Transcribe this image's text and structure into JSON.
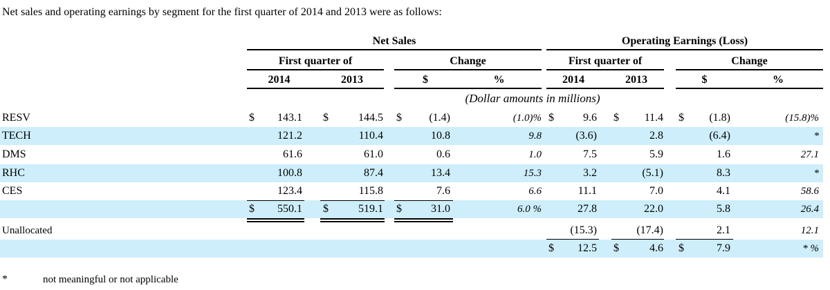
{
  "intro": "Net sales and operating earnings by segment for the first quarter of  2014 and 2013 were as follows:",
  "header": {
    "groups": [
      {
        "title": "Net Sales"
      },
      {
        "title": "Operating Earnings (Loss)"
      }
    ],
    "subgroups": [
      {
        "title": "First quarter of"
      },
      {
        "title": "Change"
      },
      {
        "title": "First quarter of"
      },
      {
        "title": "Change"
      }
    ],
    "columns": [
      "2014",
      "2013",
      "$",
      "%",
      "2014",
      "2013",
      "$",
      "%"
    ],
    "note": "(Dollar amounts in millions)"
  },
  "table": {
    "rows": [
      {
        "label": "RESV",
        "cells": [
          {
            "sign": "$",
            "value": "143.1"
          },
          {
            "sign": "$",
            "value": "144.5"
          },
          {
            "sign": "$",
            "value": "(1.4)"
          },
          {
            "value": "(1.0)%"
          },
          {
            "sign": "$",
            "value": "9.6"
          },
          {
            "sign": "$",
            "value": "11.4"
          },
          {
            "sign": "$",
            "value": "(1.8)"
          },
          {
            "value": "(15.8)%"
          }
        ]
      },
      {
        "label": "TECH",
        "cells": [
          {
            "value": "121.2"
          },
          {
            "value": "110.4"
          },
          {
            "value": "10.8"
          },
          {
            "value": "9.8"
          },
          {
            "value": "(3.6)"
          },
          {
            "value": "2.8"
          },
          {
            "value": "(6.4)"
          },
          {
            "value": "*"
          }
        ]
      },
      {
        "label": "DMS",
        "cells": [
          {
            "value": "61.6"
          },
          {
            "value": "61.0"
          },
          {
            "value": "0.6"
          },
          {
            "value": "1.0"
          },
          {
            "value": "7.5"
          },
          {
            "value": "5.9"
          },
          {
            "value": "1.6"
          },
          {
            "value": "27.1"
          }
        ]
      },
      {
        "label": "RHC",
        "cells": [
          {
            "value": "100.8"
          },
          {
            "value": "87.4"
          },
          {
            "value": "13.4"
          },
          {
            "value": "15.3"
          },
          {
            "value": "3.2"
          },
          {
            "value": "(5.1)"
          },
          {
            "value": "8.3"
          },
          {
            "value": "*"
          }
        ]
      },
      {
        "label": "CES",
        "cells": [
          {
            "value": "123.4"
          },
          {
            "value": "115.8"
          },
          {
            "value": "7.6"
          },
          {
            "value": "6.6"
          },
          {
            "value": "11.1"
          },
          {
            "value": "7.0"
          },
          {
            "value": "4.1"
          },
          {
            "value": "58.6"
          }
        ]
      },
      {
        "label": null,
        "cells": [
          {
            "sign": "$",
            "value": "550.1"
          },
          {
            "sign": "$",
            "value": "519.1"
          },
          {
            "sign": "$",
            "value": "31.0"
          },
          {
            "value": "6.0 %"
          },
          {
            "value": "27.8"
          },
          {
            "value": "22.0"
          },
          {
            "value": "5.8"
          },
          {
            "value": "26.4"
          }
        ]
      },
      {
        "label": "Unallocated",
        "cells": [
          null,
          null,
          null,
          null,
          {
            "value": "(15.3)"
          },
          {
            "value": "(17.4)"
          },
          {
            "value": "2.1"
          },
          {
            "value": "12.1"
          }
        ]
      },
      {
        "label": null,
        "cells": [
          null,
          null,
          null,
          null,
          {
            "sign": "$",
            "value": "12.5"
          },
          {
            "sign": "$",
            "value": "4.6"
          },
          {
            "sign": "$",
            "value": "7.9"
          },
          {
            "value": "* %"
          }
        ]
      }
    ]
  },
  "footnote": {
    "mark": "*",
    "text": "not meaningful or not applicable"
  }
}
